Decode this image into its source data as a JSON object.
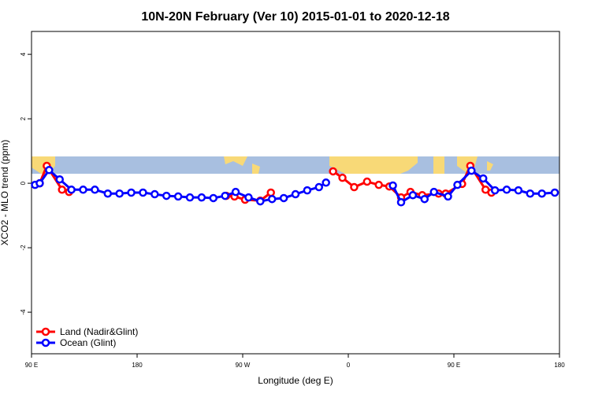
{
  "chart_data": {
    "type": "line",
    "title": "10N-20N February (Ver 10)   2015-01-01 to 2020-12-18",
    "x_label": "Longitude (deg E)",
    "y_label": "XCO2 - MLO trend (ppm)",
    "xlim": [
      90,
      540
    ],
    "ylim": [
      -5.29,
      4.71
    ],
    "xticks": [
      {
        "value": 90,
        "label": "90 E"
      },
      {
        "value": 180,
        "label": "180"
      },
      {
        "value": 270,
        "label": "90 W"
      },
      {
        "value": 360,
        "label": "0"
      },
      {
        "value": 450,
        "label": "90 E"
      },
      {
        "value": 540,
        "label": "180"
      }
    ],
    "yticks": [
      -4,
      -2,
      0,
      2,
      4
    ],
    "legend": "bottom-left",
    "series": [
      {
        "name": "Land (Nadir&Glint)",
        "color": "#ff0000",
        "x": [
          97,
          103,
          116,
          122,
          200,
          256,
          263,
          272,
          285,
          294,
          320,
          347,
          355,
          365,
          376,
          386,
          395,
          405,
          413,
          423,
          437,
          443,
          457,
          464,
          477,
          482
        ],
        "values": [
          0.0,
          0.54,
          -0.2,
          -0.27,
          null,
          -0.39,
          -0.41,
          -0.51,
          -0.54,
          -0.29,
          null,
          0.37,
          0.17,
          -0.12,
          0.05,
          -0.05,
          -0.1,
          -0.44,
          -0.27,
          -0.37,
          -0.32,
          -0.32,
          -0.02,
          0.54,
          -0.2,
          -0.29
        ]
      },
      {
        "name": "Ocean (Glint)",
        "color": "#0000ff",
        "x": [
          93,
          97,
          105,
          114,
          124,
          134,
          144,
          155,
          165,
          175,
          185,
          195,
          205,
          215,
          225,
          235,
          245,
          255,
          264,
          275,
          285,
          295,
          305,
          315,
          325,
          335,
          341,
          370,
          398,
          405,
          415,
          425,
          433,
          445,
          453,
          465,
          475,
          485,
          495,
          505,
          515,
          525,
          536
        ],
        "values": [
          -0.05,
          0.0,
          0.41,
          0.12,
          -0.2,
          -0.2,
          -0.2,
          -0.32,
          -0.32,
          -0.29,
          -0.29,
          -0.34,
          -0.39,
          -0.41,
          -0.44,
          -0.44,
          -0.46,
          -0.39,
          -0.27,
          -0.44,
          -0.56,
          -0.49,
          -0.46,
          -0.34,
          -0.22,
          -0.12,
          0.02,
          null,
          -0.07,
          -0.59,
          -0.37,
          -0.49,
          -0.27,
          -0.41,
          -0.05,
          0.39,
          0.15,
          -0.22,
          -0.2,
          -0.22,
          -0.32,
          -0.32,
          -0.29
        ]
      }
    ]
  }
}
